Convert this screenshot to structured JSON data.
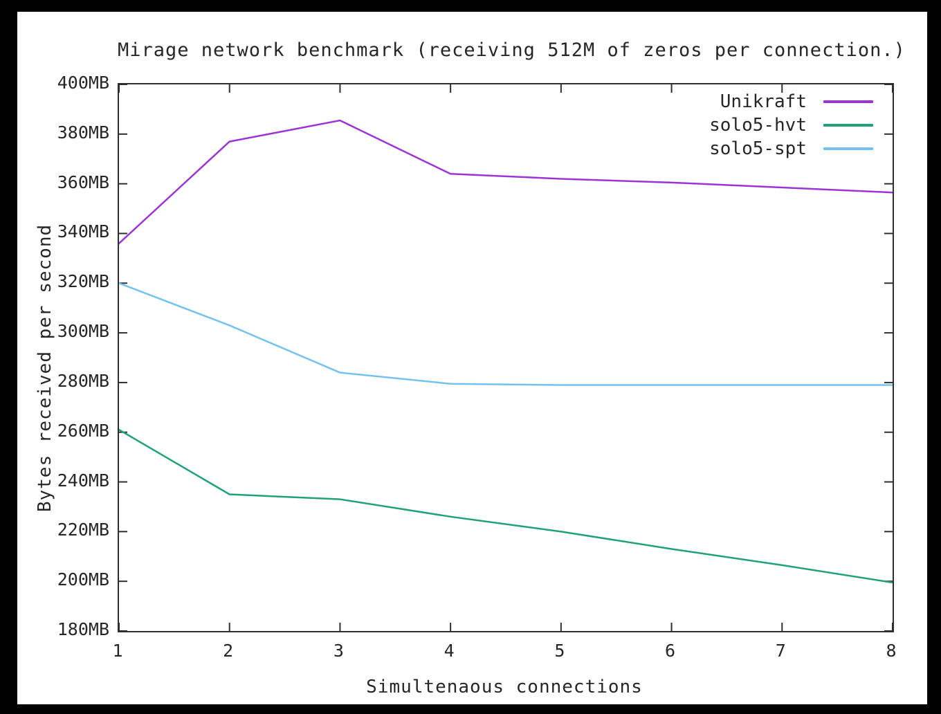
{
  "window": {
    "background_color": "#000000",
    "canvas_color": "#ffffff"
  },
  "chart_data": {
    "type": "line",
    "title": "Mirage network benchmark (receiving 512M of zeros per connection.)",
    "xlabel": "Simultenaous connections",
    "ylabel": "Bytes received per second",
    "xlim": [
      1,
      8
    ],
    "ylim": [
      180,
      400
    ],
    "grid": false,
    "legend_position": "top-right-inside",
    "axis_color": "#2e2e2e",
    "text_color": "#262626",
    "x": [
      1,
      2,
      3,
      4,
      5,
      6,
      7,
      8
    ],
    "xtick_values": [
      1,
      2,
      3,
      4,
      5,
      6,
      7,
      8
    ],
    "xtick_labels": [
      "1",
      "2",
      "3",
      "4",
      "5",
      "6",
      "7",
      "8"
    ],
    "ytick_values": [
      180,
      200,
      220,
      240,
      260,
      280,
      300,
      320,
      340,
      360,
      380,
      400
    ],
    "ytick_labels": [
      "180MB",
      "200MB",
      "220MB",
      "240MB",
      "260MB",
      "280MB",
      "300MB",
      "320MB",
      "340MB",
      "360MB",
      "380MB",
      "400MB"
    ],
    "series": [
      {
        "name": "Unikraft",
        "color": "#9d33d6",
        "values": [
          336,
          377,
          385.5,
          364,
          362,
          360.5,
          358.5,
          356.5
        ]
      },
      {
        "name": "solo5-hvt",
        "color": "#21a179",
        "values": [
          261,
          235,
          233,
          226,
          220,
          213,
          206.5,
          199.5
        ]
      },
      {
        "name": "solo5-spt",
        "color": "#74c2ef",
        "values": [
          320,
          303,
          284,
          279.5,
          279,
          279,
          279,
          279
        ]
      }
    ]
  }
}
